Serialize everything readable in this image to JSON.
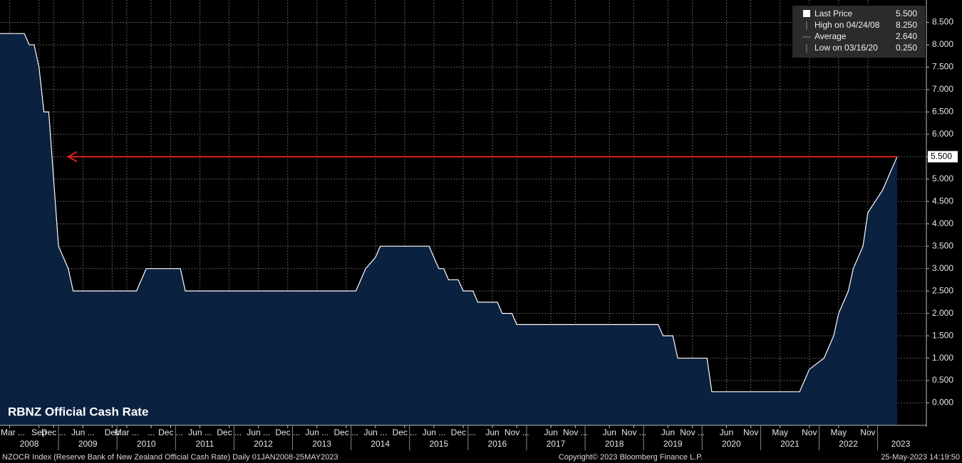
{
  "chart_data": {
    "type": "area",
    "title": "RBNZ Official Cash Rate",
    "footer_left": "NZOCR Index (Reserve Bank of New Zealand Official Cash Rate)  Daily 01JAN2008-25MAY2023",
    "footer_center": "Copyright© 2023 Bloomberg Finance L.P.",
    "footer_right": "25-May-2023 14:19:50",
    "x": [
      "2008-01",
      "2008-06",
      "2008-07",
      "2008-08",
      "2008-09",
      "2008-10",
      "2008-11",
      "2008-12",
      "2009-01",
      "2009-03",
      "2009-04",
      "2010-05",
      "2010-06",
      "2010-07",
      "2011-02",
      "2011-03",
      "2014-02",
      "2014-03",
      "2014-04",
      "2014-06",
      "2014-07",
      "2015-05",
      "2015-06",
      "2015-07",
      "2015-08",
      "2015-09",
      "2015-11",
      "2015-12",
      "2016-02",
      "2016-03",
      "2016-07",
      "2016-08",
      "2016-10",
      "2016-11",
      "2019-04",
      "2019-05",
      "2019-07",
      "2019-08",
      "2020-02",
      "2020-03",
      "2021-09",
      "2021-10",
      "2021-11",
      "2022-02",
      "2022-04",
      "2022-05",
      "2022-07",
      "2022-08",
      "2022-10",
      "2022-11",
      "2023-02",
      "2023-04",
      "2023-05"
    ],
    "series": [
      {
        "name": "Last Price",
        "color": "#ffffff",
        "fill": "#0b2140",
        "values": [
          8.25,
          8.25,
          8.0,
          8.0,
          7.5,
          6.5,
          6.5,
          5.0,
          3.5,
          3.0,
          2.5,
          2.5,
          2.75,
          3.0,
          3.0,
          2.5,
          2.5,
          2.75,
          3.0,
          3.25,
          3.5,
          3.5,
          3.25,
          3.0,
          3.0,
          2.75,
          2.75,
          2.5,
          2.5,
          2.25,
          2.25,
          2.0,
          2.0,
          1.75,
          1.75,
          1.5,
          1.5,
          1.0,
          1.0,
          0.25,
          0.25,
          0.5,
          0.75,
          1.0,
          1.5,
          2.0,
          2.5,
          3.0,
          3.5,
          4.25,
          4.75,
          5.25,
          5.5
        ]
      }
    ],
    "xlim": [
      "2008-01",
      "2023-11"
    ],
    "xticks": [
      {
        "value": "2008-03",
        "label": "Mar ..."
      },
      {
        "value": "2008-09",
        "label": "Sep"
      },
      {
        "value": "2008-12",
        "label": "Dec ..."
      },
      {
        "value": "2009-06",
        "label": "Jun ..."
      },
      {
        "value": "2009-12",
        "label": "Dec"
      },
      {
        "value": "2010-03",
        "label": "Mar ..."
      },
      {
        "value": "2010-08",
        "label": "..."
      },
      {
        "value": "2010-12",
        "label": "Dec ..."
      },
      {
        "value": "2011-06",
        "label": "Jun ..."
      },
      {
        "value": "2011-12",
        "label": "Dec ..."
      },
      {
        "value": "2012-06",
        "label": "Jun ..."
      },
      {
        "value": "2012-12",
        "label": "Dec ..."
      },
      {
        "value": "2013-06",
        "label": "Jun ..."
      },
      {
        "value": "2013-12",
        "label": "Dec ..."
      },
      {
        "value": "2014-06",
        "label": "Jun ..."
      },
      {
        "value": "2014-12",
        "label": "Dec ..."
      },
      {
        "value": "2015-06",
        "label": "Jun ..."
      },
      {
        "value": "2015-12",
        "label": "Dec ..."
      },
      {
        "value": "2016-06",
        "label": "Jun"
      },
      {
        "value": "2016-11",
        "label": "Nov ..."
      },
      {
        "value": "2017-06",
        "label": "Jun"
      },
      {
        "value": "2017-11",
        "label": "Nov ..."
      },
      {
        "value": "2018-06",
        "label": "Jun"
      },
      {
        "value": "2018-11",
        "label": "Nov ..."
      },
      {
        "value": "2019-06",
        "label": "Jun"
      },
      {
        "value": "2019-11",
        "label": "Nov ..."
      },
      {
        "value": "2020-06",
        "label": "Jun"
      },
      {
        "value": "2020-11",
        "label": "Nov"
      },
      {
        "value": "2021-05",
        "label": "May"
      },
      {
        "value": "2021-11",
        "label": "Nov"
      },
      {
        "value": "2022-05",
        "label": "May"
      },
      {
        "value": "2022-11",
        "label": "Nov"
      }
    ],
    "years": [
      "2008",
      "2009",
      "2010",
      "2011",
      "2012",
      "2013",
      "2014",
      "2015",
      "2016",
      "2017",
      "2018",
      "2019",
      "2020",
      "2021",
      "2022",
      "2023"
    ],
    "ylim": [
      -0.5,
      9.0
    ],
    "yticks": [
      {
        "value": 0,
        "label": "0.000"
      },
      {
        "value": 0.5,
        "label": "0.500"
      },
      {
        "value": 1,
        "label": "1.000"
      },
      {
        "value": 1.5,
        "label": "1.500"
      },
      {
        "value": 2,
        "label": "2.000"
      },
      {
        "value": 2.5,
        "label": "2.500"
      },
      {
        "value": 3,
        "label": "3.000"
      },
      {
        "value": 3.5,
        "label": "3.500"
      },
      {
        "value": 4,
        "label": "4.000"
      },
      {
        "value": 4.5,
        "label": "4.500"
      },
      {
        "value": 5,
        "label": "5.000"
      },
      {
        "value": 5.5,
        "label": "5.500"
      },
      {
        "value": 6,
        "label": "6.000"
      },
      {
        "value": 6.5,
        "label": "6.500"
      },
      {
        "value": 7,
        "label": "7.000"
      },
      {
        "value": 7.5,
        "label": "7.500"
      },
      {
        "value": 8,
        "label": "8.000"
      },
      {
        "value": 8.5,
        "label": "8.500"
      }
    ],
    "grid": true,
    "reference_line": {
      "value": 5.5,
      "label": "5.500",
      "color": "#e0201b"
    },
    "legend": [
      {
        "name": "Last Price",
        "value": "5.500"
      },
      {
        "name": "High on 04/24/08",
        "value": "8.250"
      },
      {
        "name": "Average",
        "value": "2.640"
      },
      {
        "name": "Low on 03/16/20",
        "value": "0.250"
      }
    ]
  }
}
